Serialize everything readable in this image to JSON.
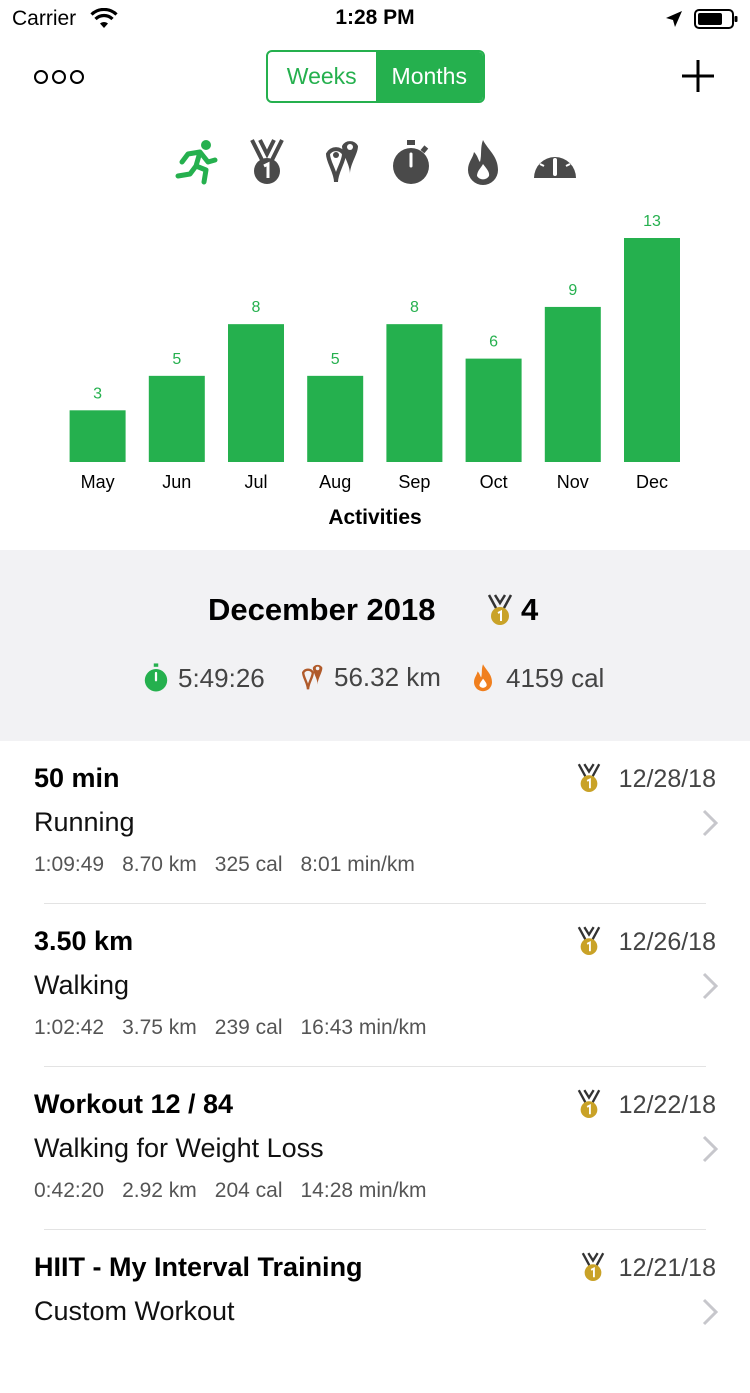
{
  "status_bar": {
    "carrier": "Carrier",
    "time": "1:28 PM"
  },
  "nav": {
    "segments": [
      "Weeks",
      "Months"
    ],
    "selected_segment": "Months"
  },
  "metric_icons": [
    "running-icon",
    "medal-icon",
    "distance-pin-icon",
    "stopwatch-icon",
    "flame-icon",
    "speedometer-icon"
  ],
  "colors": {
    "accent": "#25b04e",
    "medal": "#c9a227",
    "pin": "#b05a2a",
    "flame": "#f07f1e",
    "icon_gray": "#4a4a4a"
  },
  "chart_data": {
    "type": "bar",
    "categories": [
      "May",
      "Jun",
      "Jul",
      "Aug",
      "Sep",
      "Oct",
      "Nov",
      "Dec"
    ],
    "values": [
      3,
      5,
      8,
      5,
      8,
      6,
      9,
      13
    ],
    "xlabel": "Activities",
    "ylim": [
      0,
      13
    ],
    "data_labels": true,
    "grid": false
  },
  "summary": {
    "title": "December 2018",
    "medal_count": "4",
    "duration": "5:49:26",
    "distance": "56.32 km",
    "calories": "4159 cal"
  },
  "activities": [
    {
      "title": "50 min",
      "type": "Running",
      "date": "12/28/18",
      "meta": [
        "1:09:49",
        "8.70 km",
        "325 cal",
        "8:01 min/km"
      ]
    },
    {
      "title": "3.50 km",
      "type": "Walking",
      "date": "12/26/18",
      "meta": [
        "1:02:42",
        "3.75 km",
        "239 cal",
        "16:43 min/km"
      ]
    },
    {
      "title": "Workout 12 / 84",
      "type": "Walking for Weight Loss",
      "date": "12/22/18",
      "meta": [
        "0:42:20",
        "2.92 km",
        "204 cal",
        "14:28 min/km"
      ]
    },
    {
      "title": "HIIT - My Interval Training",
      "type": "Custom Workout",
      "date": "12/21/18",
      "meta": []
    }
  ]
}
